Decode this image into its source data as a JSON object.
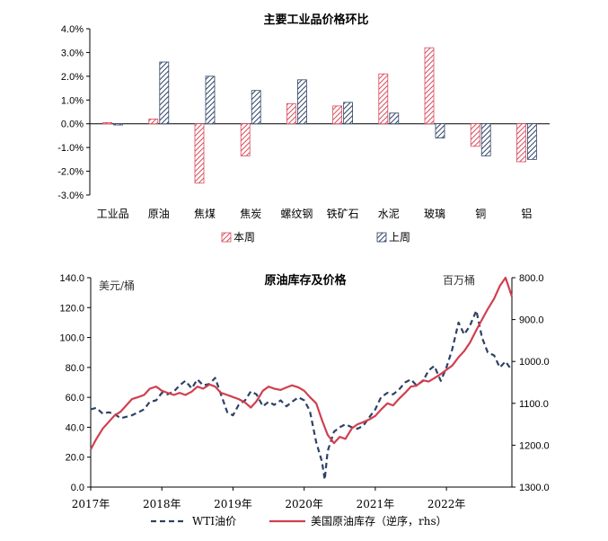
{
  "chart_data": [
    {
      "type": "bar",
      "title": "主要工业品价格环比",
      "categories": [
        "工业品",
        "原油",
        "焦煤",
        "焦炭",
        "螺纹钢",
        "铁矿石",
        "水泥",
        "玻璃",
        "铜",
        "铝"
      ],
      "series": [
        {
          "name": "本周",
          "values": [
            0.05,
            0.2,
            -2.5,
            -1.35,
            0.85,
            0.75,
            2.1,
            3.2,
            -0.95,
            -1.6
          ],
          "color": "#d94a5a",
          "pattern": "hatch-red"
        },
        {
          "name": "上周",
          "values": [
            -0.05,
            2.6,
            2.0,
            1.4,
            1.85,
            0.9,
            0.45,
            -0.6,
            -1.35,
            -1.5
          ],
          "color": "#2e4266",
          "pattern": "hatch-blue"
        }
      ],
      "ylim": [
        -3.0,
        4.0
      ],
      "yticks": [
        "4.0%",
        "3.0%",
        "2.0%",
        "1.0%",
        "0.0%",
        "-1.0%",
        "-2.0%",
        "-3.0%"
      ],
      "ytick_values": [
        4,
        3,
        2,
        1,
        0,
        -1,
        -2,
        -3
      ],
      "legend_position": "bottom"
    },
    {
      "type": "line",
      "title": "原油库存及价格",
      "left_unit": "美元/桶",
      "right_unit": "百万桶",
      "x_ticks": [
        "2017年",
        "2018年",
        "2019年",
        "2020年",
        "2021年",
        "2022年"
      ],
      "x_tick_values": [
        2017,
        2018,
        2019,
        2020,
        2021,
        2022
      ],
      "xlim": [
        2017,
        2022.92
      ],
      "left_ylim": [
        0,
        140
      ],
      "left_yticks": [
        "140.0",
        "120.0",
        "100.0",
        "80.0",
        "60.0",
        "40.0",
        "20.0",
        "0.0"
      ],
      "left_ytick_values": [
        140,
        120,
        100,
        80,
        60,
        40,
        20,
        0
      ],
      "right_ylim_reversed": [
        800,
        1300
      ],
      "right_yticks": [
        "800.0",
        "900.0",
        "1000.0",
        "1100.0",
        "1200.0",
        "1300.0"
      ],
      "right_ytick_values": [
        800,
        900,
        1000,
        1100,
        1200,
        1300
      ],
      "legend_position": "bottom",
      "series": [
        {
          "name": "WTI油价",
          "axis": "left",
          "style": "dashed",
          "color": "#2e4266",
          "points": [
            [
              2017.0,
              52
            ],
            [
              2017.08,
              53
            ],
            [
              2017.17,
              49
            ],
            [
              2017.25,
              50
            ],
            [
              2017.33,
              49
            ],
            [
              2017.42,
              46
            ],
            [
              2017.5,
              47
            ],
            [
              2017.58,
              48
            ],
            [
              2017.67,
              50
            ],
            [
              2017.75,
              52
            ],
            [
              2017.83,
              57
            ],
            [
              2017.92,
              58
            ],
            [
              2018.0,
              63
            ],
            [
              2018.08,
              62
            ],
            [
              2018.17,
              64
            ],
            [
              2018.25,
              68
            ],
            [
              2018.33,
              71
            ],
            [
              2018.42,
              66
            ],
            [
              2018.5,
              72
            ],
            [
              2018.58,
              68
            ],
            [
              2018.67,
              69
            ],
            [
              2018.75,
              73
            ],
            [
              2018.83,
              62
            ],
            [
              2018.92,
              50
            ],
            [
              2019.0,
              48
            ],
            [
              2019.08,
              55
            ],
            [
              2019.17,
              58
            ],
            [
              2019.25,
              64
            ],
            [
              2019.33,
              62
            ],
            [
              2019.42,
              54
            ],
            [
              2019.5,
              57
            ],
            [
              2019.58,
              55
            ],
            [
              2019.67,
              58
            ],
            [
              2019.75,
              54
            ],
            [
              2019.83,
              57
            ],
            [
              2019.92,
              60
            ],
            [
              2020.0,
              58
            ],
            [
              2020.08,
              51
            ],
            [
              2020.17,
              30
            ],
            [
              2020.25,
              17
            ],
            [
              2020.29,
              5
            ],
            [
              2020.33,
              24
            ],
            [
              2020.42,
              37
            ],
            [
              2020.5,
              40
            ],
            [
              2020.58,
              42
            ],
            [
              2020.67,
              40
            ],
            [
              2020.75,
              39
            ],
            [
              2020.83,
              41
            ],
            [
              2020.92,
              47
            ],
            [
              2021.0,
              52
            ],
            [
              2021.08,
              60
            ],
            [
              2021.17,
              63
            ],
            [
              2021.25,
              62
            ],
            [
              2021.33,
              65
            ],
            [
              2021.42,
              70
            ],
            [
              2021.5,
              72
            ],
            [
              2021.58,
              68
            ],
            [
              2021.67,
              71
            ],
            [
              2021.75,
              78
            ],
            [
              2021.83,
              81
            ],
            [
              2021.92,
              71
            ],
            [
              2022.0,
              80
            ],
            [
              2022.08,
              92
            ],
            [
              2022.17,
              110
            ],
            [
              2022.25,
              102
            ],
            [
              2022.33,
              108
            ],
            [
              2022.42,
              118
            ],
            [
              2022.5,
              100
            ],
            [
              2022.58,
              90
            ],
            [
              2022.67,
              88
            ],
            [
              2022.75,
              80
            ],
            [
              2022.83,
              84
            ],
            [
              2022.92,
              78
            ]
          ]
        },
        {
          "name": "美国原油库存（逆序，rhs）",
          "axis": "right",
          "style": "solid",
          "color": "#d0404f",
          "points": [
            [
              2017.0,
              1210
            ],
            [
              2017.08,
              1185
            ],
            [
              2017.17,
              1160
            ],
            [
              2017.25,
              1145
            ],
            [
              2017.33,
              1130
            ],
            [
              2017.42,
              1120
            ],
            [
              2017.5,
              1105
            ],
            [
              2017.58,
              1090
            ],
            [
              2017.67,
              1085
            ],
            [
              2017.75,
              1080
            ],
            [
              2017.83,
              1065
            ],
            [
              2017.92,
              1060
            ],
            [
              2018.0,
              1070
            ],
            [
              2018.08,
              1075
            ],
            [
              2018.17,
              1080
            ],
            [
              2018.25,
              1075
            ],
            [
              2018.33,
              1080
            ],
            [
              2018.42,
              1072
            ],
            [
              2018.5,
              1060
            ],
            [
              2018.58,
              1065
            ],
            [
              2018.67,
              1055
            ],
            [
              2018.75,
              1060
            ],
            [
              2018.83,
              1075
            ],
            [
              2018.92,
              1080
            ],
            [
              2019.0,
              1085
            ],
            [
              2019.08,
              1090
            ],
            [
              2019.17,
              1098
            ],
            [
              2019.25,
              1110
            ],
            [
              2019.33,
              1095
            ],
            [
              2019.42,
              1070
            ],
            [
              2019.5,
              1060
            ],
            [
              2019.58,
              1065
            ],
            [
              2019.67,
              1068
            ],
            [
              2019.75,
              1062
            ],
            [
              2019.83,
              1057
            ],
            [
              2019.92,
              1062
            ],
            [
              2020.0,
              1070
            ],
            [
              2020.08,
              1085
            ],
            [
              2020.17,
              1100
            ],
            [
              2020.25,
              1140
            ],
            [
              2020.33,
              1175
            ],
            [
              2020.42,
              1195
            ],
            [
              2020.5,
              1180
            ],
            [
              2020.58,
              1185
            ],
            [
              2020.67,
              1160
            ],
            [
              2020.75,
              1150
            ],
            [
              2020.83,
              1145
            ],
            [
              2020.92,
              1138
            ],
            [
              2021.0,
              1130
            ],
            [
              2021.08,
              1115
            ],
            [
              2021.17,
              1100
            ],
            [
              2021.25,
              1105
            ],
            [
              2021.33,
              1090
            ],
            [
              2021.42,
              1075
            ],
            [
              2021.5,
              1060
            ],
            [
              2021.58,
              1058
            ],
            [
              2021.67,
              1045
            ],
            [
              2021.75,
              1048
            ],
            [
              2021.83,
              1040
            ],
            [
              2021.92,
              1030
            ],
            [
              2022.0,
              1020
            ],
            [
              2022.08,
              1010
            ],
            [
              2022.17,
              990
            ],
            [
              2022.25,
              975
            ],
            [
              2022.33,
              955
            ],
            [
              2022.42,
              925
            ],
            [
              2022.5,
              900
            ],
            [
              2022.58,
              875
            ],
            [
              2022.67,
              850
            ],
            [
              2022.75,
              820
            ],
            [
              2022.83,
              800
            ],
            [
              2022.92,
              845
            ]
          ]
        }
      ]
    }
  ]
}
